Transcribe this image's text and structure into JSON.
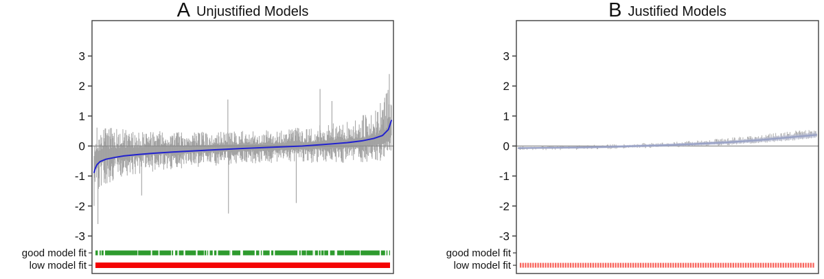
{
  "figure": {
    "background": "#ffffff",
    "border_color": "#3f3f3f",
    "zero_line_color": "#8c8c8c",
    "text_color": "#111111"
  },
  "chart_data": [
    {
      "type": "line",
      "panel_label": "A",
      "title": "Unjustified Models",
      "xlabel": "",
      "ylabel": "",
      "ylim": [
        -4.25,
        4.18
      ],
      "y_ticks": [
        3,
        2,
        1,
        0,
        -1,
        -2,
        -3
      ],
      "zero_line": 0,
      "grid": false,
      "legend": null,
      "series": [
        {
          "name": "noisy model deviation estimates",
          "style": "vertical-bars",
          "color": "#a2a2a2",
          "n": 620,
          "seed": 7,
          "base_pull": 0.45,
          "envelope_t": [
            0,
            0.02,
            0.08,
            0.2,
            0.35,
            0.5,
            0.65,
            0.8,
            0.9,
            0.96,
            1
          ],
          "envelope_up": [
            1.1,
            0.95,
            0.8,
            0.65,
            0.58,
            0.55,
            0.6,
            0.7,
            0.9,
            1.2,
            1.7
          ],
          "envelope_down": [
            1.5,
            1.1,
            0.85,
            0.7,
            0.6,
            0.55,
            0.55,
            0.6,
            0.65,
            0.7,
            0.8
          ],
          "density_t": [
            0,
            1
          ],
          "density": [
            1,
            1
          ],
          "spikes": [
            {
              "t": 0.013,
              "y": -2.6
            },
            {
              "t": 0.16,
              "y": -1.65
            },
            {
              "t": 0.45,
              "y": 1.55
            },
            {
              "t": 0.452,
              "y": -2.25
            },
            {
              "t": 0.68,
              "y": -1.9
            },
            {
              "t": 0.76,
              "y": 1.9
            },
            {
              "t": 0.8,
              "y": 1.5
            },
            {
              "t": 0.993,
              "y": 2.4
            }
          ]
        },
        {
          "name": "smoothed mean fit",
          "style": "line",
          "color": "#2121cf",
          "width": 2,
          "t": [
            0,
            0.005,
            0.01,
            0.02,
            0.04,
            0.07,
            0.1,
            0.15,
            0.2,
            0.3,
            0.4,
            0.5,
            0.6,
            0.7,
            0.8,
            0.85,
            0.9,
            0.94,
            0.97,
            0.99,
            1
          ],
          "y": [
            -0.88,
            -0.72,
            -0.62,
            -0.52,
            -0.44,
            -0.38,
            -0.33,
            -0.28,
            -0.24,
            -0.18,
            -0.13,
            -0.08,
            -0.04,
            0.0,
            0.07,
            0.11,
            0.17,
            0.25,
            0.35,
            0.55,
            0.85
          ]
        }
      ],
      "rug_rows": [
        {
          "label": "good model fit",
          "color": "#2e9b2e",
          "style": "dense-bar-with-gaps",
          "gap_count": 44,
          "height": 7
        },
        {
          "label": "low model fit",
          "color": "#f40404",
          "style": "solid-bar",
          "height": 8
        }
      ]
    },
    {
      "type": "line",
      "panel_label": "B",
      "title": "Justified Models",
      "xlabel": "",
      "ylabel": "",
      "ylim": [
        -4.25,
        4.18
      ],
      "y_ticks": [
        3,
        2,
        1,
        0,
        -1,
        -2,
        -3
      ],
      "zero_line": 0,
      "grid": false,
      "legend": null,
      "series": [
        {
          "name": "noisy model deviation estimates",
          "style": "vertical-bars",
          "color": "#aeaeae",
          "n": 520,
          "seed": 11,
          "base_pull": 1.0,
          "envelope_t": [
            0,
            0.2,
            0.4,
            0.6,
            0.75,
            0.9,
            1
          ],
          "envelope_up": [
            0.07,
            0.08,
            0.09,
            0.12,
            0.16,
            0.2,
            0.22
          ],
          "envelope_down": [
            0.07,
            0.08,
            0.08,
            0.09,
            0.1,
            0.12,
            0.12
          ],
          "density_t": [
            0,
            0.3,
            0.5,
            0.7,
            1
          ],
          "density": [
            0.45,
            0.5,
            0.6,
            0.82,
            0.95
          ],
          "spikes": []
        },
        {
          "name": "smoothed mean fit",
          "style": "line-with-ribbon",
          "color": "#99a2c6",
          "ribbon_color": "#b9c0d8",
          "width": 2.4,
          "t": [
            0,
            0.1,
            0.2,
            0.3,
            0.4,
            0.5,
            0.6,
            0.7,
            0.8,
            0.9,
            1
          ],
          "y": [
            -0.07,
            -0.06,
            -0.05,
            -0.03,
            0.0,
            0.03,
            0.07,
            0.12,
            0.19,
            0.28,
            0.37
          ],
          "ribbon_halfwidth": [
            0.03,
            0.03,
            0.035,
            0.04,
            0.045,
            0.05,
            0.055,
            0.06,
            0.07,
            0.08,
            0.09
          ]
        }
      ],
      "rug_rows": [
        {
          "label": "good model fit",
          "color": "#2e9b2e",
          "style": "empty",
          "height": 7
        },
        {
          "label": "low model fit",
          "color": "#f8625a",
          "style": "tick-bar",
          "tick_count": 118,
          "height": 7
        }
      ]
    }
  ]
}
